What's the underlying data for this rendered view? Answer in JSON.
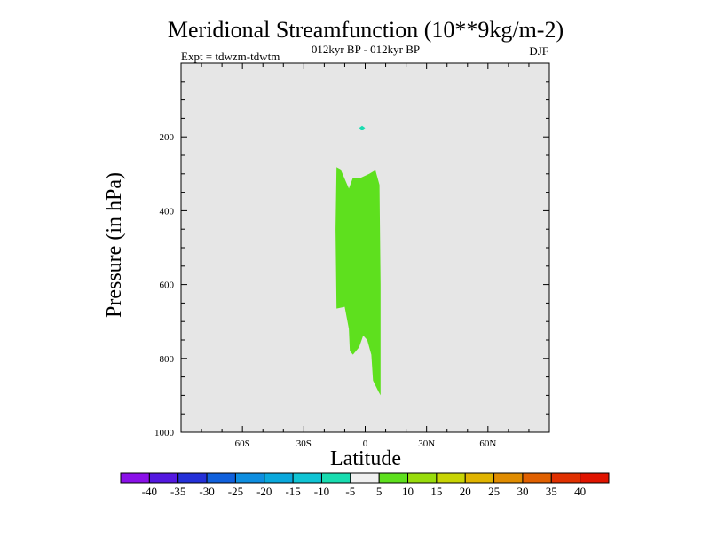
{
  "chart_data": {
    "type": "contour",
    "title": "Meridional Streamfunction (10**9kg/m-2)",
    "subtitle_center": "012kyr BP - 012kyr BP",
    "subtitle_left": "Expt = tdwzm-tdwtm",
    "subtitle_right": "DJF",
    "xlabel": "Latitude",
    "ylabel": "Pressure (in hPa)",
    "xlim": [
      -90,
      90
    ],
    "ylim": [
      0,
      1000
    ],
    "y_inverted": true,
    "x_ticks": [
      {
        "value": -60,
        "label": "60S"
      },
      {
        "value": -30,
        "label": "30S"
      },
      {
        "value": 0,
        "label": "0"
      },
      {
        "value": 30,
        "label": "30N"
      },
      {
        "value": 60,
        "label": "60N"
      }
    ],
    "y_ticks": [
      {
        "value": 200,
        "label": "200"
      },
      {
        "value": 400,
        "label": "400"
      },
      {
        "value": 600,
        "label": "600"
      },
      {
        "value": 800,
        "label": "800"
      },
      {
        "value": 1000,
        "label": "1000"
      }
    ],
    "background_color": "#e6e6e6",
    "regions": [
      {
        "band": "5 to 10",
        "color": "#5ee01e",
        "polygon": [
          [
            -14,
            282
          ],
          [
            -12,
            288
          ],
          [
            -8,
            340
          ],
          [
            -6,
            310
          ],
          [
            -2,
            310
          ],
          [
            2,
            300
          ],
          [
            5,
            290
          ],
          [
            7,
            330
          ],
          [
            7.5,
            600
          ],
          [
            7.5,
            900
          ],
          [
            6.5,
            890
          ],
          [
            3.8,
            860
          ],
          [
            3,
            790
          ],
          [
            1,
            750
          ],
          [
            -1,
            738
          ],
          [
            -3,
            770
          ],
          [
            -6,
            790
          ],
          [
            -7.5,
            780
          ],
          [
            -8,
            720
          ],
          [
            -10,
            660
          ],
          [
            -14,
            665
          ],
          [
            -14.5,
            450
          ]
        ]
      },
      {
        "band": "-10 to -5",
        "color": "#1adcb0",
        "polygon": [
          [
            -1.5,
            170
          ],
          [
            0,
            176
          ],
          [
            -1.5,
            182
          ],
          [
            -3,
            176
          ]
        ]
      }
    ],
    "colorbar": {
      "labels": [
        "-40",
        "-35",
        "-30",
        "-25",
        "-20",
        "-15",
        "-10",
        "-5",
        "5",
        "10",
        "15",
        "20",
        "25",
        "30",
        "35",
        "40"
      ],
      "colors": [
        "#8a10e8",
        "#5418e0",
        "#2430d8",
        "#1060dc",
        "#0e8ee0",
        "#0aa8dc",
        "#10c4d4",
        "#18dcb0",
        "#f0f0f0",
        "#5ee01e",
        "#98dc0c",
        "#c8d404",
        "#e0b400",
        "#e08c00",
        "#e06000",
        "#e03000",
        "#e01400"
      ]
    }
  }
}
